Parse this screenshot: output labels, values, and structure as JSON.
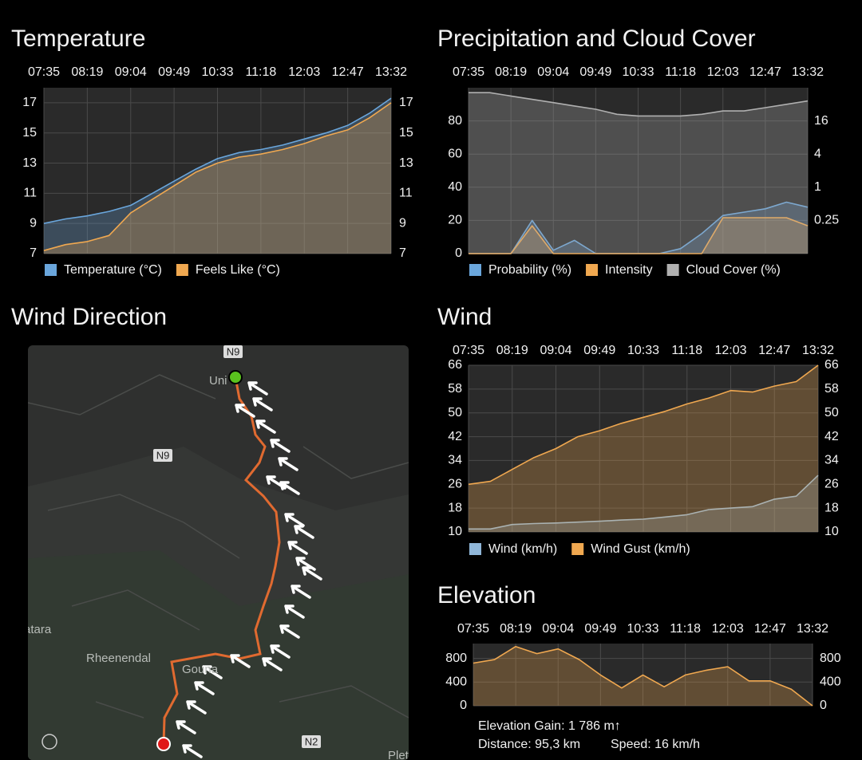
{
  "chart_data": [
    {
      "type": "line",
      "title": "Temperature",
      "categories": [
        "07:35",
        null,
        "08:19",
        null,
        "09:04",
        null,
        "09:49",
        null,
        "10:33",
        null,
        "11:18",
        null,
        "12:03",
        null,
        "12:47",
        null,
        "13:32"
      ],
      "series": [
        {
          "name": "Temperature (°C)",
          "color": "#6aa6dc",
          "values": [
            9.0,
            9.3,
            9.5,
            9.8,
            10.2,
            11.0,
            11.8,
            12.6,
            13.3,
            13.7,
            13.9,
            14.2,
            14.6,
            15.0,
            15.5,
            16.3,
            17.3
          ]
        },
        {
          "name": "Feels Like (°C)",
          "color": "#f0a850",
          "values": [
            7.2,
            7.6,
            7.8,
            8.2,
            9.7,
            10.6,
            11.5,
            12.4,
            13.0,
            13.4,
            13.6,
            13.9,
            14.3,
            14.8,
            15.2,
            16.0,
            17.0
          ]
        }
      ],
      "ylim": [
        7,
        18
      ],
      "yticks": [
        7,
        9,
        11,
        13,
        15,
        17
      ],
      "mirror_y_axis": true,
      "grid": true,
      "legend": "bottom-left"
    },
    {
      "type": "line",
      "title": "Precipitation and Cloud Cover",
      "categories": [
        "07:35",
        null,
        "08:19",
        null,
        "09:04",
        null,
        "09:49",
        null,
        "10:33",
        null,
        "11:18",
        null,
        "12:03",
        null,
        "12:47",
        null,
        "13:32"
      ],
      "series": [
        {
          "name": "Probability (%)",
          "color": "#6aa6dc",
          "values": [
            0,
            0,
            0,
            20,
            2,
            8,
            0,
            0,
            0,
            0,
            3,
            12,
            23,
            25,
            27,
            31,
            28
          ]
        },
        {
          "name": "Intensity",
          "color": "#f0a850",
          "axis": "y2",
          "values": [
            0,
            0,
            0,
            0.2,
            0,
            0,
            0,
            0,
            0,
            0,
            0,
            0,
            0.28,
            0.28,
            0.28,
            0.28,
            0.2
          ]
        },
        {
          "name": "Cloud Cover (%)",
          "color": "#b0b0b0",
          "values": [
            97,
            97,
            95,
            93,
            91,
            89,
            87,
            84,
            83,
            83,
            83,
            84,
            86,
            86,
            88,
            90,
            92
          ]
        }
      ],
      "ylim": [
        0,
        100
      ],
      "yticks": [
        0,
        20,
        40,
        60,
        80
      ],
      "y2lim": [
        0.0625,
        64
      ],
      "y2ticks": [
        0.25,
        1,
        4,
        16
      ],
      "y2log": true,
      "grid": true,
      "legend": "bottom-left"
    },
    {
      "type": "line",
      "title": "Wind",
      "categories": [
        "07:35",
        null,
        "08:19",
        null,
        "09:04",
        null,
        "09:49",
        null,
        "10:33",
        null,
        "11:18",
        null,
        "12:03",
        null,
        "12:47",
        null,
        "13:32"
      ],
      "series": [
        {
          "name": "Wind (km/h)",
          "color": "#8fb6d8",
          "values": [
            11,
            11,
            12.5,
            12.8,
            13,
            13.3,
            13.6,
            14,
            14.3,
            15,
            15.8,
            17.5,
            18,
            18.5,
            21,
            22,
            29
          ]
        },
        {
          "name": "Wind Gust (km/h)",
          "color": "#f0a850",
          "values": [
            26,
            27,
            31,
            35,
            38,
            42,
            44,
            46.5,
            48.5,
            50.5,
            53,
            55,
            57.5,
            57,
            59,
            60.5,
            66
          ]
        }
      ],
      "ylim": [
        10,
        66
      ],
      "yticks": [
        10,
        18,
        26,
        34,
        42,
        50,
        58,
        66
      ],
      "mirror_y_axis": true,
      "grid": true,
      "legend": "bottom-left"
    },
    {
      "type": "line",
      "title": "Elevation",
      "categories": [
        "07:35",
        null,
        "08:19",
        null,
        "09:04",
        null,
        "09:49",
        null,
        "10:33",
        null,
        "11:18",
        null,
        "12:03",
        null,
        "12:47",
        null,
        "13:32"
      ],
      "series": [
        {
          "color": "#f0a850",
          "values": [
            720,
            780,
            1000,
            880,
            960,
            780,
            520,
            300,
            520,
            320,
            520,
            600,
            660,
            420,
            420,
            280,
            0
          ]
        }
      ],
      "ylim": [
        0,
        1050
      ],
      "yticks": [
        0,
        400,
        800
      ],
      "mirror_y_axis": true,
      "grid": true
    }
  ],
  "elevation_stats": {
    "gain": "Elevation Gain: 1 786 m↑",
    "distance": "Distance: 95,3 km",
    "speed": "Speed: 16 km/h"
  },
  "map": {
    "title": "Wind Direction",
    "labels": [
      "N9",
      "N9",
      "Uni",
      "atara",
      "Rheenendal",
      "Gouna",
      "N2",
      "Plet"
    ]
  }
}
